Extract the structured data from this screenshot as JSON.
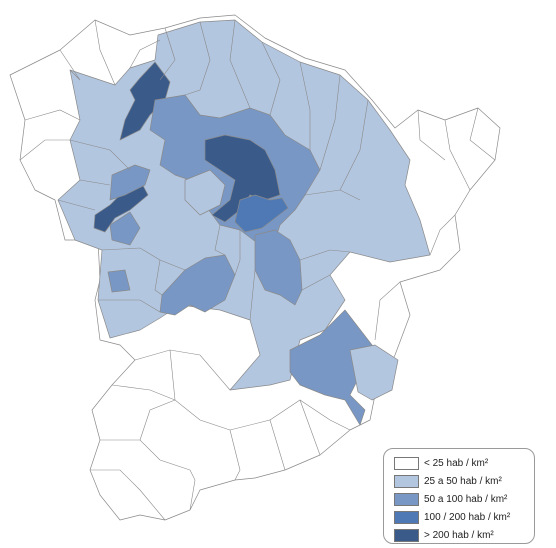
{
  "colors": {
    "c1": "#ffffff",
    "c2": "#b3c6e0",
    "c3": "#7897c4",
    "c4": "#4e79b4",
    "c5": "#3a5a8a"
  },
  "legend": {
    "items": [
      {
        "label": "< 25 hab / km²",
        "color": "#ffffff"
      },
      {
        "label": "25 a 50 hab / km²",
        "color": "#b3c6e0"
      },
      {
        "label": "50 a 100 hab / km²",
        "color": "#7897c4"
      },
      {
        "label": "100 / 200 hab / km²",
        "color": "#4e79b4"
      },
      {
        "label": "> 200 hab / km²",
        "color": "#3a5a8a"
      }
    ]
  }
}
